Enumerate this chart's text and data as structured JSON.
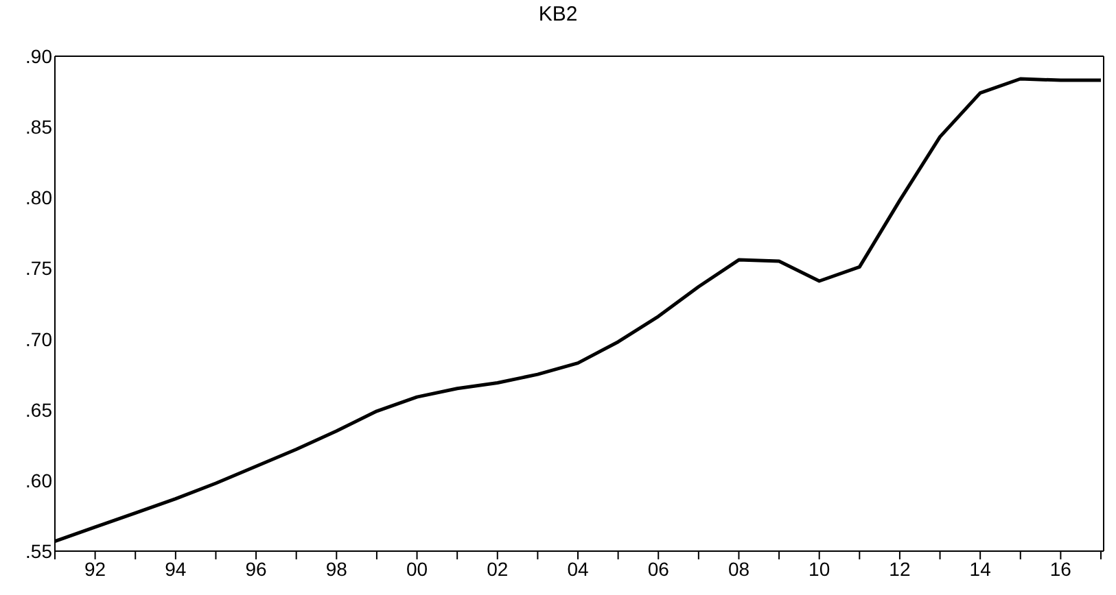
{
  "chart_data": {
    "type": "line",
    "title": "KB2",
    "categories": [
      null,
      "92",
      null,
      "94",
      null,
      "96",
      null,
      "98",
      null,
      "00",
      null,
      "02",
      null,
      "04",
      null,
      "06",
      null,
      "08",
      null,
      "10",
      null,
      "12",
      null,
      "14",
      null,
      "16",
      null
    ],
    "series": [
      {
        "color": "#000000",
        "values": [
          0.557,
          0.567,
          0.577,
          0.587,
          0.598,
          0.61,
          0.622,
          0.635,
          0.649,
          0.659,
          0.665,
          0.669,
          0.675,
          0.683,
          0.698,
          0.716,
          0.737,
          0.756,
          0.755,
          0.741,
          0.751,
          0.798,
          0.843,
          0.874,
          0.884,
          0.883,
          0.883
        ]
      }
    ],
    "ylim": [
      0.55,
      0.9
    ],
    "yticks": [
      {
        "value": 0.55,
        "label": ".55"
      },
      {
        "value": 0.6,
        "label": ".60"
      },
      {
        "value": 0.65,
        "label": ".65"
      },
      {
        "value": 0.7,
        "label": ".70"
      },
      {
        "value": 0.75,
        "label": ".75"
      },
      {
        "value": 0.8,
        "label": ".80"
      },
      {
        "value": 0.85,
        "label": ".85"
      },
      {
        "value": 0.9,
        "label": ".90"
      }
    ],
    "grid": false,
    "marker": "none",
    "line_style": "solid"
  }
}
